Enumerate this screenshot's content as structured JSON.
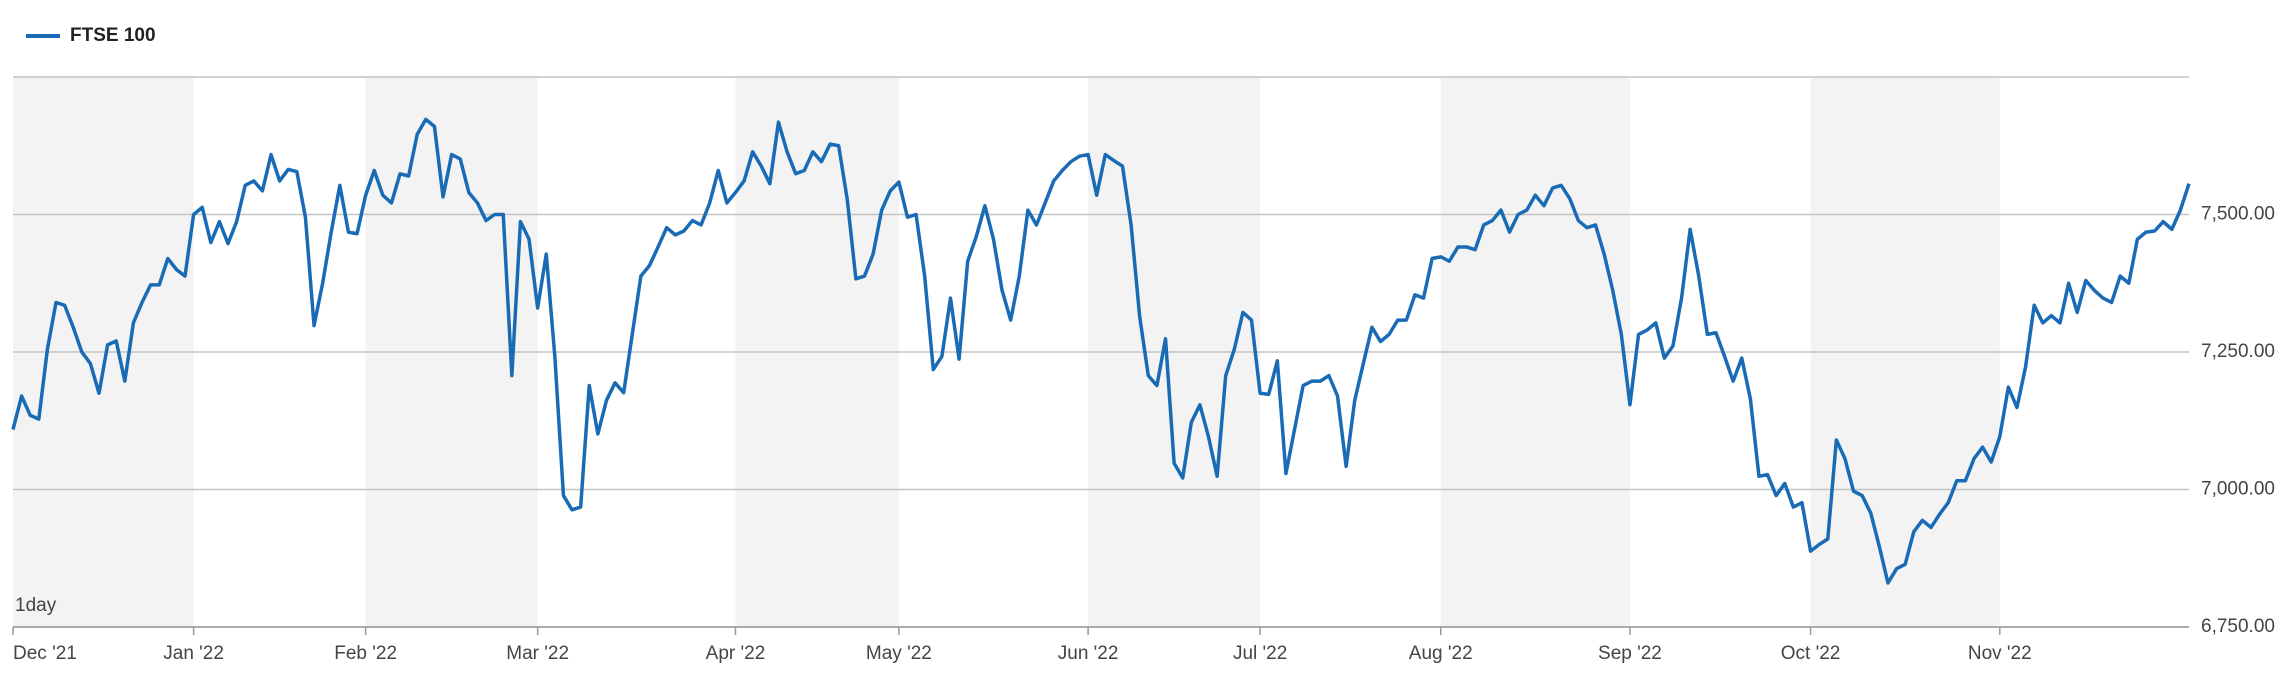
{
  "chart_data": {
    "type": "line",
    "interval_label": "1day",
    "legend_position": "top-left",
    "grid": true,
    "band_shading": "#f3f3f3",
    "ylim": [
      6750,
      7750
    ],
    "yticks": [
      {
        "value": 6750,
        "label": "6,750.00"
      },
      {
        "value": 7000,
        "label": "7,000.00"
      },
      {
        "value": 7250,
        "label": "7,250.00"
      },
      {
        "value": 7500,
        "label": "7,500.00"
      }
    ],
    "categories": [
      "Dec '21",
      null,
      null,
      null,
      null,
      null,
      null,
      null,
      null,
      null,
      null,
      null,
      null,
      null,
      null,
      null,
      null,
      null,
      null,
      null,
      null,
      "Jan '22",
      null,
      null,
      null,
      null,
      null,
      null,
      null,
      null,
      null,
      null,
      null,
      null,
      null,
      null,
      null,
      null,
      null,
      null,
      null,
      "Feb '22",
      null,
      null,
      null,
      null,
      null,
      null,
      null,
      null,
      null,
      null,
      null,
      null,
      null,
      null,
      null,
      null,
      null,
      null,
      null,
      "Mar '22",
      null,
      null,
      null,
      null,
      null,
      null,
      null,
      null,
      null,
      null,
      null,
      null,
      null,
      null,
      null,
      null,
      null,
      null,
      null,
      null,
      null,
      null,
      "Apr '22",
      null,
      null,
      null,
      null,
      null,
      null,
      null,
      null,
      null,
      null,
      null,
      null,
      null,
      null,
      null,
      null,
      null,
      null,
      "May '22",
      null,
      null,
      null,
      null,
      null,
      null,
      null,
      null,
      null,
      null,
      null,
      null,
      null,
      null,
      null,
      null,
      null,
      null,
      null,
      null,
      null,
      "Jun '22",
      null,
      null,
      null,
      null,
      null,
      null,
      null,
      null,
      null,
      null,
      null,
      null,
      null,
      null,
      null,
      null,
      null,
      null,
      null,
      "Jul '22",
      null,
      null,
      null,
      null,
      null,
      null,
      null,
      null,
      null,
      null,
      null,
      null,
      null,
      null,
      null,
      null,
      null,
      null,
      null,
      null,
      "Aug '22",
      null,
      null,
      null,
      null,
      null,
      null,
      null,
      null,
      null,
      null,
      null,
      null,
      null,
      null,
      null,
      null,
      null,
      null,
      null,
      null,
      null,
      "Sep '22",
      null,
      null,
      null,
      null,
      null,
      null,
      null,
      null,
      null,
      null,
      null,
      null,
      null,
      null,
      null,
      null,
      null,
      null,
      null,
      null,
      "Oct '22",
      null,
      null,
      null,
      null,
      null,
      null,
      null,
      null,
      null,
      null,
      null,
      null,
      null,
      null,
      null,
      null,
      null,
      null,
      null,
      null,
      null,
      "Nov '22",
      null,
      null,
      null,
      null,
      null,
      null,
      null,
      null,
      null,
      null,
      null,
      null,
      null,
      null,
      null,
      null,
      null,
      null,
      null,
      null,
      null,
      null
    ],
    "series": [
      {
        "name": "FTSE 100",
        "color": "#1a6bb5",
        "values": [
          7109,
          7170,
          7135,
          7128,
          7255,
          7340,
          7335,
          7295,
          7250,
          7229,
          7175,
          7263,
          7270,
          7197,
          7303,
          7340,
          7372,
          7372,
          7420,
          7400,
          7388,
          7500,
          7513,
          7449,
          7487,
          7447,
          7487,
          7553,
          7561,
          7543,
          7609,
          7561,
          7582,
          7578,
          7495,
          7298,
          7375,
          7468,
          7553,
          7468,
          7465,
          7535,
          7580,
          7535,
          7521,
          7574,
          7570,
          7646,
          7673,
          7660,
          7532,
          7609,
          7601,
          7540,
          7521,
          7489,
          7500,
          7500,
          7207,
          7487,
          7455,
          7330,
          7428,
          7242,
          6989,
          6963,
          6968,
          7189,
          7101,
          7162,
          7194,
          7176,
          7282,
          7388,
          7407,
          7441,
          7476,
          7463,
          7470,
          7489,
          7481,
          7521,
          7580,
          7521,
          7540,
          7561,
          7614,
          7588,
          7556,
          7668,
          7614,
          7574,
          7580,
          7614,
          7596,
          7628,
          7625,
          7527,
          7383,
          7388,
          7428,
          7508,
          7543,
          7559,
          7495,
          7500,
          7388,
          7218,
          7242,
          7348,
          7237,
          7415,
          7460,
          7516,
          7455,
          7362,
          7308,
          7388,
          7508,
          7481,
          7521,
          7561,
          7580,
          7596,
          7606,
          7609,
          7535,
          7609,
          7598,
          7588,
          7481,
          7314,
          7207,
          7189,
          7274,
          7048,
          7021,
          7122,
          7154,
          7096,
          7024,
          7207,
          7255,
          7322,
          7308,
          7175,
          7173,
          7234,
          7029,
          7109,
          7189,
          7197,
          7197,
          7207,
          7170,
          7042,
          7162,
          7229,
          7295,
          7269,
          7282,
          7308,
          7308,
          7354,
          7348,
          7420,
          7423,
          7415,
          7441,
          7441,
          7436,
          7481,
          7489,
          7508,
          7468,
          7500,
          7508,
          7535,
          7516,
          7548,
          7553,
          7529,
          7489,
          7476,
          7481,
          7428,
          7362,
          7282,
          7154,
          7282,
          7290,
          7303,
          7239,
          7261,
          7348,
          7473,
          7388,
          7282,
          7285,
          7242,
          7197,
          7239,
          7165,
          7024,
          7027,
          6989,
          7011,
          6968,
          6976,
          6888,
          6900,
          6910,
          7090,
          7056,
          6997,
          6989,
          6957,
          6896,
          6830,
          6856,
          6864,
          6923,
          6944,
          6931,
          6955,
          6976,
          7016,
          7016,
          7056,
          7077,
          7050,
          7096,
          7186,
          7149,
          7223,
          7335,
          7303,
          7316,
          7303,
          7375,
          7322,
          7380,
          7362,
          7348,
          7340,
          7388,
          7375,
          7455,
          7468,
          7470,
          7487,
          7473,
          7508,
          7556
        ]
      }
    ]
  }
}
